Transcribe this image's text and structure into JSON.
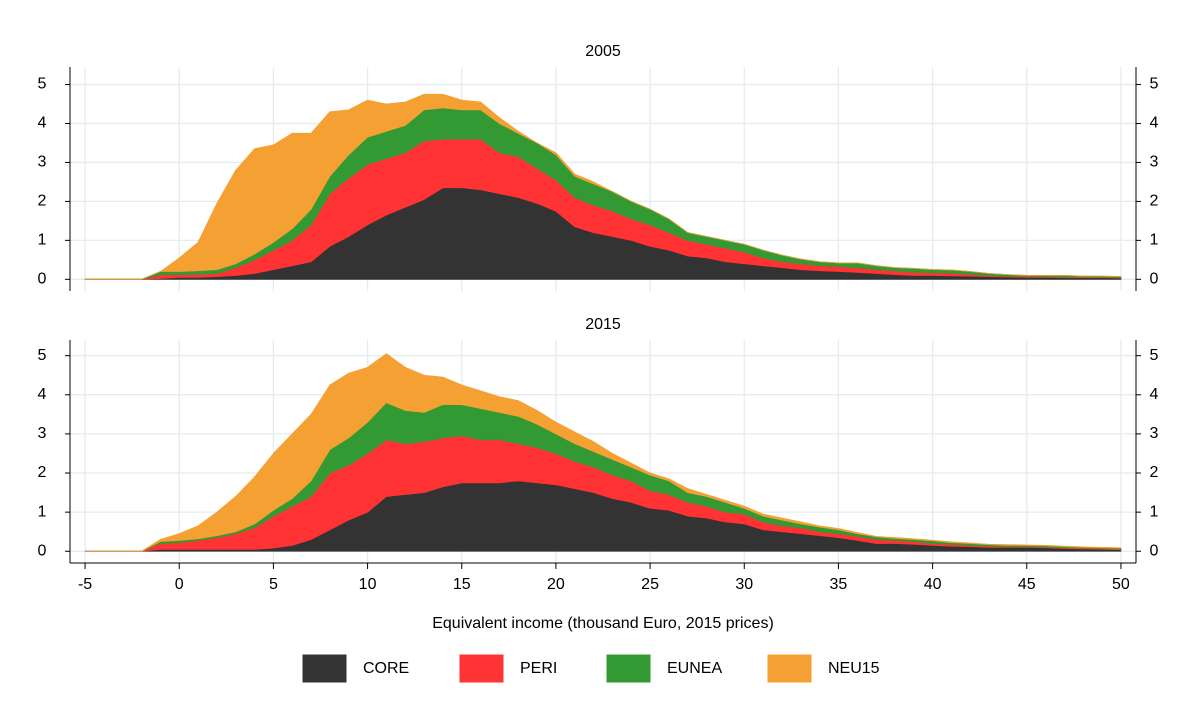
{
  "chart_data": [
    {
      "type": "stacked-area",
      "title": "2005",
      "x": [
        -5,
        -4,
        -3,
        -2,
        -1,
        0,
        1,
        2,
        3,
        4,
        5,
        6,
        7,
        8,
        9,
        10,
        11,
        12,
        13,
        14,
        15,
        16,
        17,
        18,
        19,
        20,
        21,
        22,
        23,
        24,
        25,
        26,
        27,
        28,
        29,
        30,
        31,
        32,
        33,
        34,
        35,
        36,
        37,
        38,
        39,
        40,
        41,
        42,
        43,
        44,
        45,
        46,
        47,
        48,
        49,
        50
      ],
      "xlim": [
        -5.8,
        50.8
      ],
      "ylim": [
        -0.3,
        5.45
      ],
      "yticks": [
        0,
        1,
        2,
        3,
        4,
        5
      ],
      "grid": true,
      "series": [
        {
          "color": "#333333",
          "values": [
            0,
            0,
            0,
            0,
            0.02,
            0.05,
            0.05,
            0.07,
            0.1,
            0.15,
            0.25,
            0.35,
            0.45,
            0.85,
            1.1,
            1.4,
            1.65,
            1.85,
            2.05,
            2.35,
            2.35,
            2.3,
            2.2,
            2.1,
            1.95,
            1.75,
            1.35,
            1.2,
            1.1,
            1.0,
            0.85,
            0.75,
            0.6,
            0.55,
            0.45,
            0.4,
            0.35,
            0.3,
            0.25,
            0.22,
            0.2,
            0.18,
            0.15,
            0.12,
            0.1,
            0.1,
            0.09,
            0.08,
            0.07,
            0.06,
            0.05,
            0.05,
            0.04,
            0.04,
            0.04,
            0.03
          ]
        },
        {
          "color": "#ff3333",
          "values": [
            0,
            0,
            0,
            0,
            0.1,
            0.07,
            0.08,
            0.08,
            0.2,
            0.35,
            0.5,
            0.65,
            0.95,
            1.35,
            1.5,
            1.55,
            1.45,
            1.4,
            1.5,
            1.25,
            1.25,
            1.3,
            1.05,
            1.05,
            0.9,
            0.8,
            0.75,
            0.7,
            0.65,
            0.55,
            0.55,
            0.45,
            0.4,
            0.35,
            0.35,
            0.3,
            0.2,
            0.15,
            0.15,
            0.13,
            0.13,
            0.12,
            0.1,
            0.1,
            0.08,
            0.07,
            0.07,
            0.05,
            0.03,
            0.02,
            0.03,
            0.02,
            0.02,
            0.02,
            0.01,
            0.02
          ]
        },
        {
          "color": "#339933",
          "values": [
            0,
            0,
            0,
            0,
            0.08,
            0.08,
            0.09,
            0.1,
            0.1,
            0.15,
            0.2,
            0.3,
            0.4,
            0.45,
            0.6,
            0.7,
            0.7,
            0.7,
            0.8,
            0.8,
            0.75,
            0.75,
            0.75,
            0.6,
            0.65,
            0.65,
            0.55,
            0.55,
            0.5,
            0.45,
            0.4,
            0.35,
            0.2,
            0.2,
            0.2,
            0.2,
            0.2,
            0.17,
            0.12,
            0.1,
            0.09,
            0.12,
            0.1,
            0.08,
            0.1,
            0.08,
            0.08,
            0.07,
            0.05,
            0.04,
            0.02,
            0.03,
            0.04,
            0.02,
            0.03,
            0.02
          ]
        },
        {
          "color": "#f5a033",
          "values": [
            0,
            0,
            0,
            0,
            0,
            0.35,
            0.73,
            1.7,
            2.4,
            2.7,
            2.5,
            2.45,
            1.95,
            1.65,
            1.15,
            0.95,
            0.7,
            0.6,
            0.4,
            0.35,
            0.25,
            0.2,
            0.15,
            0.05,
            0,
            0.05,
            0.05,
            0.05,
            0,
            0,
            0,
            0,
            0,
            0,
            0,
            0,
            0,
            0,
            0,
            0,
            0,
            0,
            0,
            0,
            0,
            0,
            0,
            0,
            0,
            0,
            0,
            0,
            0,
            0,
            0,
            0
          ]
        }
      ]
    },
    {
      "type": "stacked-area",
      "title": "2015",
      "xlabel": "Equivalent income (thousand Euro, 2015 prices)",
      "x": [
        -5,
        -4,
        -3,
        -2,
        -1,
        0,
        1,
        2,
        3,
        4,
        5,
        6,
        7,
        8,
        9,
        10,
        11,
        12,
        13,
        14,
        15,
        16,
        17,
        18,
        19,
        20,
        21,
        22,
        23,
        24,
        25,
        26,
        27,
        28,
        29,
        30,
        31,
        32,
        33,
        34,
        35,
        36,
        37,
        38,
        39,
        40,
        41,
        42,
        43,
        44,
        45,
        46,
        47,
        48,
        49,
        50
      ],
      "xlim": [
        -5.8,
        50.8
      ],
      "xticks": [
        -5,
        0,
        5,
        10,
        15,
        20,
        25,
        30,
        35,
        40,
        45,
        50
      ],
      "ylim": [
        -0.3,
        5.4
      ],
      "yticks": [
        0,
        1,
        2,
        3,
        4,
        5
      ],
      "grid": true,
      "series": [
        {
          "name": "CORE",
          "color": "#333333",
          "values": [
            0,
            0,
            0,
            0,
            0.05,
            0.05,
            0.05,
            0.05,
            0.05,
            0.05,
            0.08,
            0.15,
            0.3,
            0.55,
            0.8,
            1.0,
            1.4,
            1.45,
            1.5,
            1.65,
            1.75,
            1.75,
            1.75,
            1.8,
            1.75,
            1.7,
            1.6,
            1.5,
            1.35,
            1.25,
            1.1,
            1.05,
            0.9,
            0.85,
            0.75,
            0.7,
            0.55,
            0.5,
            0.45,
            0.4,
            0.35,
            0.28,
            0.2,
            0.2,
            0.18,
            0.15,
            0.13,
            0.12,
            0.1,
            0.1,
            0.1,
            0.09,
            0.07,
            0.06,
            0.05,
            0.04
          ]
        },
        {
          "name": "PERI",
          "color": "#ff3333",
          "values": [
            0,
            0,
            0,
            0,
            0.15,
            0.17,
            0.23,
            0.3,
            0.4,
            0.55,
            0.82,
            1.0,
            1.1,
            1.45,
            1.4,
            1.5,
            1.45,
            1.3,
            1.3,
            1.25,
            1.2,
            1.1,
            1.1,
            0.95,
            0.9,
            0.8,
            0.7,
            0.65,
            0.6,
            0.55,
            0.45,
            0.4,
            0.35,
            0.3,
            0.25,
            0.25,
            0.2,
            0.15,
            0.15,
            0.1,
            0.1,
            0.1,
            0.1,
            0.08,
            0.07,
            0.05,
            0.05,
            0.03,
            0.03,
            0.02,
            0.02,
            0.02,
            0.02,
            0.02,
            0.02,
            0.02
          ]
        },
        {
          "name": "EUNEA",
          "color": "#339933",
          "values": [
            0,
            0,
            0,
            0,
            0.05,
            0.06,
            0.04,
            0.05,
            0.05,
            0.1,
            0.15,
            0.2,
            0.4,
            0.6,
            0.7,
            0.8,
            0.95,
            0.85,
            0.75,
            0.85,
            0.8,
            0.8,
            0.7,
            0.7,
            0.6,
            0.5,
            0.45,
            0.4,
            0.4,
            0.35,
            0.4,
            0.35,
            0.25,
            0.25,
            0.25,
            0.15,
            0.15,
            0.15,
            0.1,
            0.12,
            0.1,
            0.07,
            0.07,
            0.05,
            0.05,
            0.07,
            0.04,
            0.05,
            0.04,
            0.03,
            0.03,
            0.03,
            0.03,
            0.02,
            0.02,
            0.02
          ]
        },
        {
          "name": "NEU15",
          "color": "#f5a033",
          "values": [
            0,
            0,
            0,
            0,
            0.05,
            0.17,
            0.33,
            0.6,
            0.9,
            1.2,
            1.45,
            1.65,
            1.7,
            1.65,
            1.65,
            1.4,
            1.25,
            1.1,
            0.95,
            0.7,
            0.5,
            0.45,
            0.4,
            0.4,
            0.35,
            0.3,
            0.3,
            0.25,
            0.15,
            0.1,
            0.05,
            0.05,
            0.1,
            0.05,
            0.05,
            0.05,
            0.05,
            0.05,
            0.05,
            0.03,
            0.03,
            0.03,
            0.01,
            0.02,
            0.02,
            0.01,
            0.02,
            0.01,
            0.01,
            0.02,
            0.01,
            0.01,
            0.01,
            0.01,
            0.01,
            0.01
          ]
        }
      ]
    }
  ]
}
